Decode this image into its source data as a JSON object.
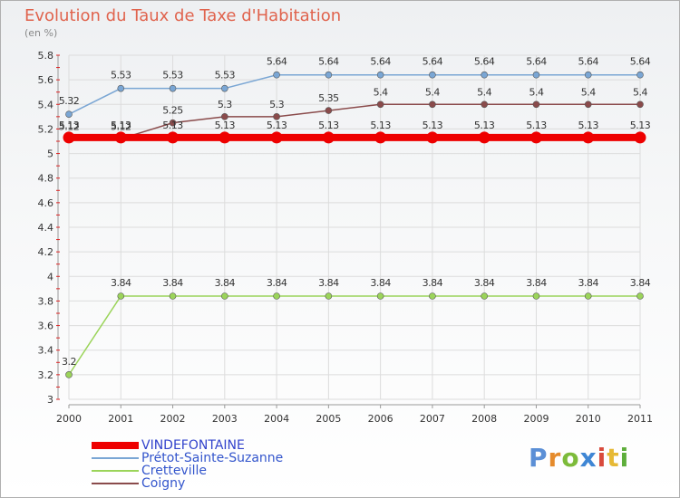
{
  "title": "Evolution du Taux de Taxe d'Habitation",
  "unit_note": "(en %)",
  "logo": {
    "text": "Proxiti",
    "letter_colors": [
      "#5b8fd6",
      "#e58b2c",
      "#7dbb3a",
      "#3f86d4",
      "#d94b3d",
      "#e6b935",
      "#5eae3b"
    ]
  },
  "chart_data": {
    "type": "line",
    "x": [
      "2000",
      "2001",
      "2002",
      "2003",
      "2004",
      "2005",
      "2006",
      "2007",
      "2008",
      "2009",
      "2010",
      "2011"
    ],
    "ylim": [
      3,
      5.8
    ],
    "yticks": [
      "3",
      "3.2",
      "3.4",
      "3.6",
      "3.8",
      "4",
      "4.2",
      "4.4",
      "4.6",
      "4.8",
      "5",
      "5.2",
      "5.4",
      "5.6",
      "5.8"
    ],
    "series": [
      {
        "name": "VINDEFONTAINE",
        "color": "#ee0000",
        "values": [
          5.13,
          5.13,
          5.13,
          5.13,
          5.13,
          5.13,
          5.13,
          5.13,
          5.13,
          5.13,
          5.13,
          5.13
        ],
        "labels": [
          "5.13",
          "5.13",
          "5.13",
          "5.13",
          "5.13",
          "5.13",
          "5.13",
          "5.13",
          "5.13",
          "5.13",
          "5.13",
          "5.13"
        ]
      },
      {
        "name": "Prétot-Sainte-Suzanne",
        "color": "#7aa6d4",
        "values": [
          5.32,
          5.53,
          5.53,
          5.53,
          5.64,
          5.64,
          5.64,
          5.64,
          5.64,
          5.64,
          5.64,
          5.64
        ],
        "labels": [
          "5.32",
          "5.53",
          "5.53",
          "5.53",
          "5.64",
          "5.64",
          "5.64",
          "5.64",
          "5.64",
          "5.64",
          "5.64",
          "5.64"
        ]
      },
      {
        "name": "Cretteville",
        "color": "#9bd45a",
        "values": [
          3.2,
          3.84,
          3.84,
          3.84,
          3.84,
          3.84,
          3.84,
          3.84,
          3.84,
          3.84,
          3.84,
          3.84
        ],
        "labels": [
          "3.2",
          "3.84",
          "3.84",
          "3.84",
          "3.84",
          "3.84",
          "3.84",
          "3.84",
          "3.84",
          "3.84",
          "3.84",
          "3.84"
        ]
      },
      {
        "name": "Coigny",
        "color": "#8a4b4b",
        "values": [
          5.12,
          5.12,
          5.25,
          5.3,
          5.3,
          5.35,
          5.4,
          5.4,
          5.4,
          5.4,
          5.4,
          5.4
        ],
        "labels": [
          "5.12",
          "5.12",
          "5.25",
          "5.3",
          "5.3",
          "5.35",
          "5.4",
          "5.4",
          "5.4",
          "5.4",
          "5.4",
          "5.4"
        ]
      }
    ]
  }
}
